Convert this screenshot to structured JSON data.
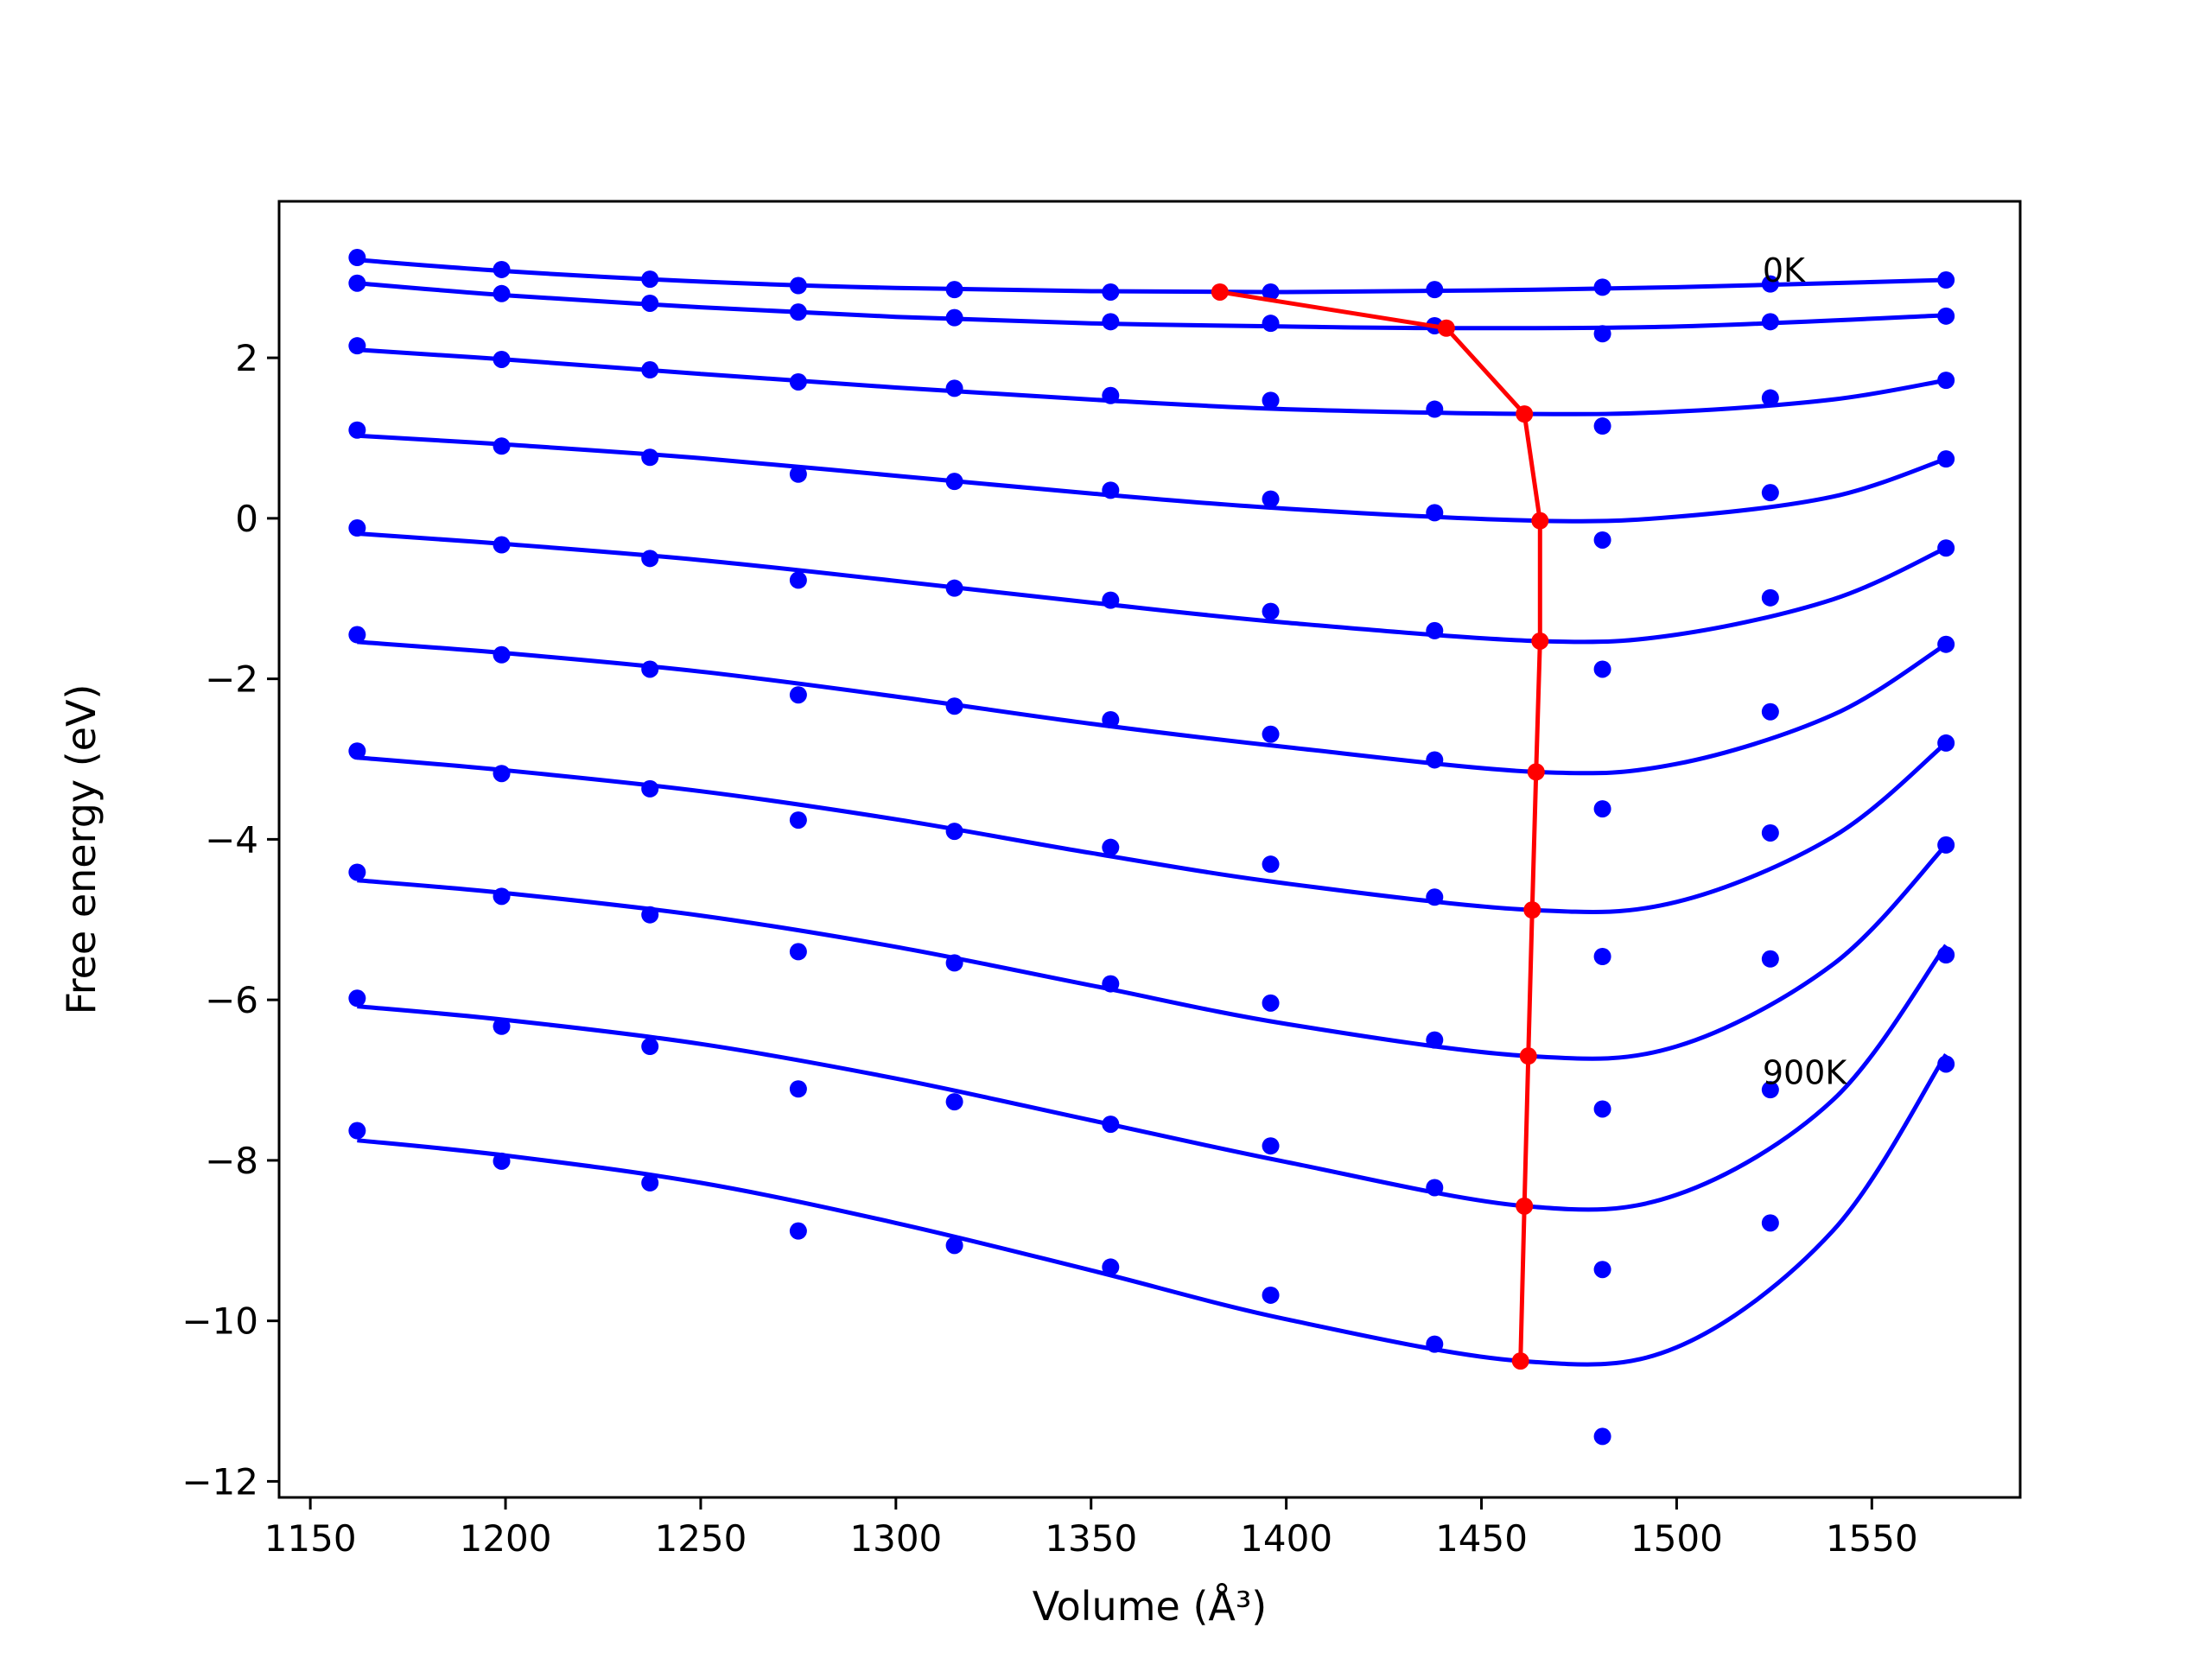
{
  "chart_data": {
    "type": "scatter",
    "xlabel": "Volume (Å³)",
    "ylabel": "Free energy (eV)",
    "xlim": [
      1142,
      1588
    ],
    "ylim": [
      -12.2,
      3.95
    ],
    "xticks": [
      1150,
      1200,
      1250,
      1300,
      1350,
      1400,
      1450,
      1500,
      1550
    ],
    "yticks": [
      -12,
      -10,
      -8,
      -6,
      -4,
      -2,
      0,
      2
    ],
    "ytick_labels": [
      "−12",
      "−10",
      "−8",
      "−6",
      "−4",
      "−2",
      "0",
      "2"
    ],
    "grid": false,
    "x": [
      1162,
      1199,
      1237,
      1275,
      1315,
      1355,
      1396,
      1438,
      1481,
      1524,
      1569
    ],
    "series": [
      {
        "temperature_label": "0K",
        "points": [
          3.25,
          3.1,
          2.98,
          2.9,
          2.85,
          2.82,
          2.82,
          2.85,
          2.88,
          2.92,
          2.97
        ],
        "fit": [
          [
            1162,
            3.22
          ],
          [
            1200,
            3.08
          ],
          [
            1250,
            2.95
          ],
          [
            1300,
            2.87
          ],
          [
            1350,
            2.83
          ],
          [
            1400,
            2.82
          ],
          [
            1450,
            2.84
          ],
          [
            1500,
            2.88
          ],
          [
            1569,
            2.97
          ]
        ]
      },
      {
        "points": [
          2.93,
          2.8,
          2.68,
          2.57,
          2.5,
          2.45,
          2.43,
          2.4,
          2.3,
          2.45,
          2.52
        ],
        "fit": [
          [
            1162,
            2.93
          ],
          [
            1200,
            2.78
          ],
          [
            1250,
            2.63
          ],
          [
            1300,
            2.51
          ],
          [
            1350,
            2.43
          ],
          [
            1400,
            2.39
          ],
          [
            1441,
            2.37
          ],
          [
            1500,
            2.39
          ],
          [
            1569,
            2.53
          ]
        ]
      },
      {
        "points": [
          2.15,
          1.98,
          1.85,
          1.7,
          1.62,
          1.53,
          1.47,
          1.36,
          1.15,
          1.5,
          1.72
        ],
        "fit": [
          [
            1162,
            2.1
          ],
          [
            1200,
            1.98
          ],
          [
            1250,
            1.8
          ],
          [
            1300,
            1.63
          ],
          [
            1350,
            1.48
          ],
          [
            1400,
            1.36
          ],
          [
            1463,
            1.3
          ],
          [
            1500,
            1.33
          ],
          [
            1540,
            1.48
          ],
          [
            1569,
            1.72
          ]
        ]
      },
      {
        "points": [
          1.1,
          0.9,
          0.76,
          0.55,
          0.46,
          0.35,
          0.24,
          0.07,
          -0.27,
          0.32,
          0.74
        ],
        "fit": [
          [
            1162,
            1.03
          ],
          [
            1200,
            0.92
          ],
          [
            1250,
            0.75
          ],
          [
            1300,
            0.53
          ],
          [
            1350,
            0.31
          ],
          [
            1400,
            0.12
          ],
          [
            1465,
            -0.03
          ],
          [
            1500,
            0.02
          ],
          [
            1540,
            0.27
          ],
          [
            1569,
            0.74
          ]
        ]
      },
      {
        "points": [
          -0.12,
          -0.33,
          -0.5,
          -0.77,
          -0.87,
          -1.02,
          -1.16,
          -1.4,
          -1.88,
          -0.99,
          -0.37
        ],
        "fit": [
          [
            1162,
            -0.19
          ],
          [
            1200,
            -0.32
          ],
          [
            1250,
            -0.52
          ],
          [
            1300,
            -0.78
          ],
          [
            1350,
            -1.05
          ],
          [
            1400,
            -1.3
          ],
          [
            1465,
            -1.53
          ],
          [
            1500,
            -1.45
          ],
          [
            1540,
            -1.01
          ],
          [
            1569,
            -0.37
          ]
        ]
      },
      {
        "points": [
          -1.45,
          -1.7,
          -1.88,
          -2.2,
          -2.34,
          -2.51,
          -2.69,
          -3.01,
          -3.62,
          -2.41,
          -1.57
        ],
        "fit": [
          [
            1162,
            -1.54
          ],
          [
            1200,
            -1.68
          ],
          [
            1250,
            -1.91
          ],
          [
            1300,
            -2.22
          ],
          [
            1350,
            -2.56
          ],
          [
            1400,
            -2.85
          ],
          [
            1464,
            -3.16
          ],
          [
            1500,
            -3.06
          ],
          [
            1540,
            -2.45
          ],
          [
            1569,
            -1.57
          ]
        ]
      },
      {
        "points": [
          -2.9,
          -3.18,
          -3.37,
          -3.76,
          -3.9,
          -4.1,
          -4.31,
          -4.72,
          -5.46,
          -3.92,
          -2.8
        ],
        "fit": [
          [
            1162,
            -2.98
          ],
          [
            1200,
            -3.14
          ],
          [
            1250,
            -3.4
          ],
          [
            1300,
            -3.75
          ],
          [
            1350,
            -4.17
          ],
          [
            1400,
            -4.55
          ],
          [
            1463,
            -4.88
          ],
          [
            1500,
            -4.78
          ],
          [
            1540,
            -3.97
          ],
          [
            1569,
            -2.8
          ]
        ]
      },
      {
        "points": [
          -4.41,
          -4.71,
          -4.94,
          -5.4,
          -5.54,
          -5.8,
          -6.04,
          -6.5,
          -7.36,
          -5.49,
          -4.07
        ],
        "fit": [
          [
            1162,
            -4.51
          ],
          [
            1200,
            -4.67
          ],
          [
            1250,
            -4.95
          ],
          [
            1300,
            -5.34
          ],
          [
            1350,
            -5.82
          ],
          [
            1400,
            -6.3
          ],
          [
            1462,
            -6.7
          ],
          [
            1500,
            -6.58
          ],
          [
            1540,
            -5.56
          ],
          [
            1569,
            -4.07
          ]
        ]
      },
      {
        "temperature_label": "900K",
        "points": [
          -5.98,
          -6.33,
          -6.58,
          -7.11,
          -7.27,
          -7.55,
          -7.82,
          -8.34,
          -9.36,
          -8.78,
          -5.44
        ],
        "fit": [
          [
            1162,
            -6.08
          ],
          [
            1200,
            -6.25
          ],
          [
            1250,
            -6.55
          ],
          [
            1300,
            -6.98
          ],
          [
            1350,
            -7.5
          ],
          [
            1400,
            -8.02
          ],
          [
            1461,
            -8.57
          ],
          [
            1500,
            -8.43
          ],
          [
            1540,
            -7.25
          ],
          [
            1569,
            -5.32
          ]
        ]
      },
      {
        "points": [
          -7.63,
          -8.01,
          -8.28,
          -8.88,
          -9.06,
          -9.33,
          -9.68,
          -10.29,
          -11.44,
          -7.12,
          -6.8
        ],
        "fit": [
          [
            1162,
            -7.75
          ],
          [
            1200,
            -7.94
          ],
          [
            1250,
            -8.28
          ],
          [
            1300,
            -8.78
          ],
          [
            1350,
            -9.37
          ],
          [
            1400,
            -9.98
          ],
          [
            1460,
            -10.5
          ],
          [
            1500,
            -10.33
          ],
          [
            1540,
            -8.88
          ],
          [
            1569,
            -6.68
          ]
        ]
      }
    ],
    "minima_path": {
      "color": "#ff0000",
      "points": [
        [
          1383,
          2.82
        ],
        [
          1441,
          2.37
        ],
        [
          1461,
          1.3
        ],
        [
          1465,
          -0.03
        ],
        [
          1465,
          -1.53
        ],
        [
          1464,
          -3.16
        ],
        [
          1463,
          -4.88
        ],
        [
          1462,
          -6.7
        ],
        [
          1461,
          -8.57
        ],
        [
          1460,
          -10.5
        ]
      ]
    },
    "annotations": [
      {
        "text": "0K",
        "x": 1522,
        "y": 2.95
      },
      {
        "text": "900K",
        "x": 1522,
        "y": -7.05
      }
    ],
    "colors": {
      "series": "#0000ff",
      "minima": "#ff0000",
      "axes": "#000000"
    }
  }
}
